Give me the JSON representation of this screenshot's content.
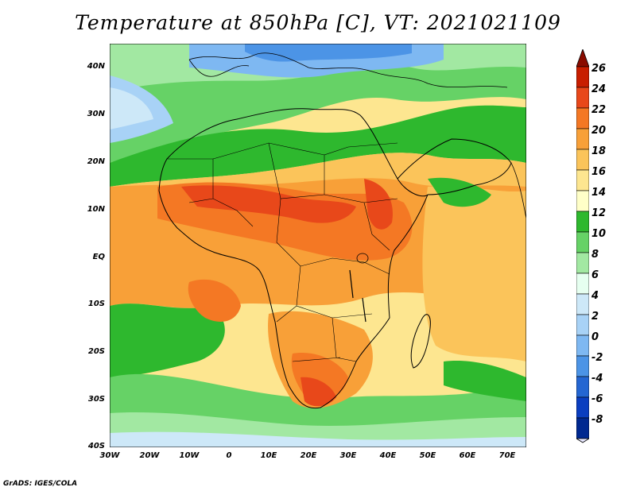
{
  "title": "Temperature at 850hPa [C], VT: 2021021109",
  "credit": "GrADS: IGES/COLA",
  "map": {
    "region": "Africa",
    "lat_ticks": [
      "40N",
      "30N",
      "20N",
      "10N",
      "EQ",
      "10S",
      "20S",
      "30S",
      "40S"
    ],
    "lon_ticks": [
      "30W",
      "20W",
      "10W",
      "0",
      "10E",
      "20E",
      "30E",
      "40E",
      "50E",
      "60E",
      "70E"
    ]
  },
  "colorbar": {
    "labels": [
      "26",
      "24",
      "22",
      "20",
      "18",
      "16",
      "14",
      "12",
      "10",
      "8",
      "6",
      "4",
      "2",
      "0",
      "-2",
      "-4",
      "-6",
      "-8"
    ],
    "colors": [
      "#8a0c00",
      "#c81e00",
      "#e8481a",
      "#f47824",
      "#f8a038",
      "#fbc45a",
      "#fde690",
      "#ffffc8",
      "#2eb82e",
      "#66d266",
      "#a2e8a2",
      "#e6fff0",
      "#cde8f8",
      "#a8d2f6",
      "#7eb8f2",
      "#4c94e6",
      "#2466d2",
      "#0a3ec0",
      "#002890",
      "#000060"
    ]
  }
}
